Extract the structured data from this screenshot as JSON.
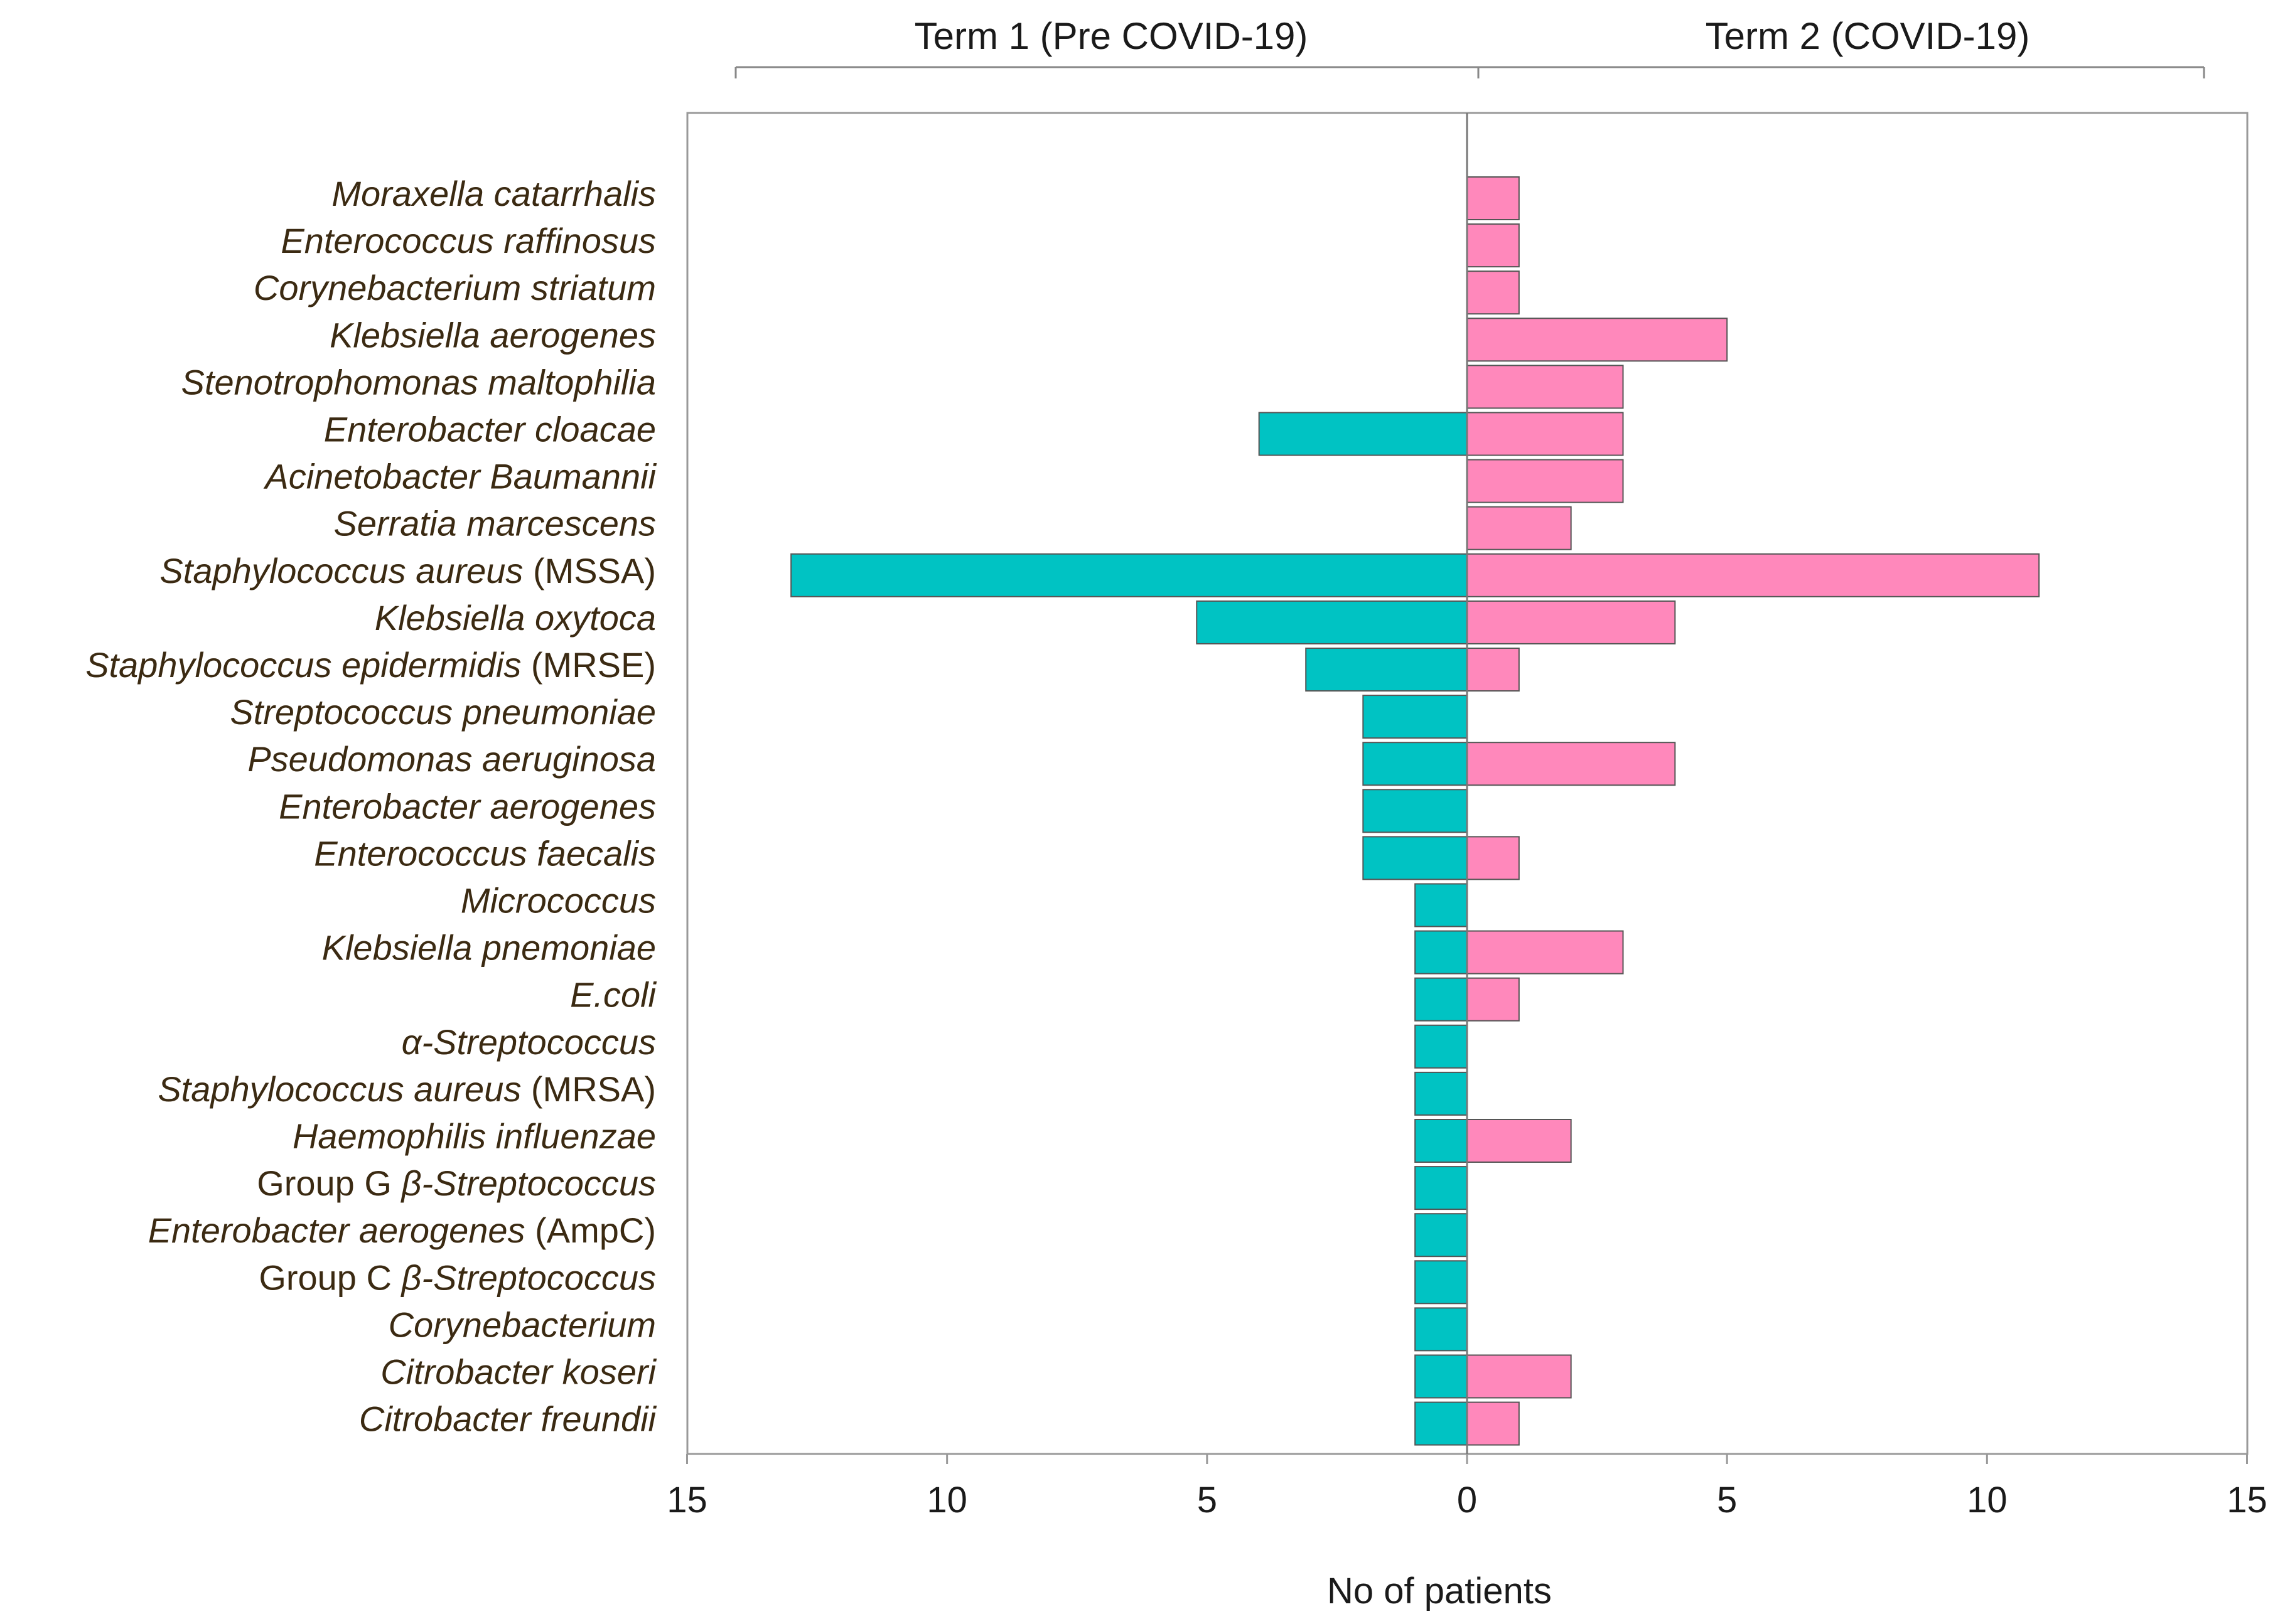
{
  "chart_data": {
    "type": "bar",
    "orientation": "horizontal-diverging",
    "title": "",
    "xlabel": "No of patients",
    "ylabel": "",
    "xlim": [
      -15,
      15
    ],
    "x_ticks": [
      -15,
      -10,
      -5,
      0,
      5,
      10,
      15
    ],
    "tick_labels": [
      "15",
      "10",
      "5",
      "0",
      "5",
      "10",
      "15"
    ],
    "grid": false,
    "colors": {
      "term1": "#00c3c3",
      "term2": "#ff88bb",
      "edge": "#555555"
    },
    "series": [
      {
        "name": "Term 1 (Pre COVID-19)",
        "side": "left",
        "values": [
          0,
          0,
          0,
          0,
          0,
          4,
          0,
          0,
          13,
          5.2,
          3.1,
          2,
          2,
          2,
          2,
          1,
          1,
          1,
          1,
          1,
          1,
          1,
          1,
          1,
          1,
          1,
          1
        ]
      },
      {
        "name": "Term 2 (COVID-19)",
        "side": "right",
        "values": [
          1,
          1,
          1,
          5,
          3,
          3,
          3,
          2,
          11,
          4,
          1,
          0,
          4,
          0,
          1,
          0,
          3,
          1,
          0,
          0,
          2,
          0,
          0,
          0,
          0,
          2,
          1
        ]
      }
    ],
    "categories": [
      {
        "parts": [
          {
            "t": "Moraxella catarrhalis",
            "i": true
          }
        ]
      },
      {
        "parts": [
          {
            "t": "Enterococcus raffinosus",
            "i": true
          }
        ]
      },
      {
        "parts": [
          {
            "t": "Corynebacterium striatum",
            "i": true
          }
        ]
      },
      {
        "parts": [
          {
            "t": "Klebsiella aerogenes",
            "i": true
          }
        ]
      },
      {
        "parts": [
          {
            "t": "Stenotrophomonas maltophilia",
            "i": true
          }
        ]
      },
      {
        "parts": [
          {
            "t": "Enterobacter cloacae",
            "i": true
          }
        ]
      },
      {
        "parts": [
          {
            "t": "Acinetobacter Baumannii",
            "i": true
          }
        ]
      },
      {
        "parts": [
          {
            "t": "Serratia marcescens",
            "i": true
          }
        ]
      },
      {
        "parts": [
          {
            "t": "Staphylococcus aureus",
            "i": true
          },
          {
            "t": " (MSSA)",
            "i": false
          }
        ]
      },
      {
        "parts": [
          {
            "t": "Klebsiella oxytoca",
            "i": true
          }
        ]
      },
      {
        "parts": [
          {
            "t": "Staphylococcus epidermidis",
            "i": true
          },
          {
            "t": " (MRSE)",
            "i": false
          }
        ]
      },
      {
        "parts": [
          {
            "t": "Streptococcus pneumoniae",
            "i": true
          }
        ]
      },
      {
        "parts": [
          {
            "t": "Pseudomonas aeruginosa",
            "i": true
          }
        ]
      },
      {
        "parts": [
          {
            "t": "Enterobacter aerogenes",
            "i": true
          }
        ]
      },
      {
        "parts": [
          {
            "t": "Enterococcus faecalis",
            "i": true
          }
        ]
      },
      {
        "parts": [
          {
            "t": "Micrococcus",
            "i": true
          }
        ]
      },
      {
        "parts": [
          {
            "t": "Klebsiella pnemoniae",
            "i": true
          }
        ]
      },
      {
        "parts": [
          {
            "t": "E.coli",
            "i": true
          }
        ]
      },
      {
        "parts": [
          {
            "t": "α-Streptococcus",
            "i": true
          }
        ]
      },
      {
        "parts": [
          {
            "t": "Staphylococcus aureus",
            "i": true
          },
          {
            "t": " (MRSA)",
            "i": false
          }
        ]
      },
      {
        "parts": [
          {
            "t": "Haemophilis influenzae",
            "i": true
          }
        ]
      },
      {
        "parts": [
          {
            "t": "Group G ",
            "i": false
          },
          {
            "t": "β-Streptococcus",
            "i": true
          }
        ]
      },
      {
        "parts": [
          {
            "t": "Enterobacter aerogenes",
            "i": true
          },
          {
            "t": "  (AmpC)",
            "i": false
          }
        ]
      },
      {
        "parts": [
          {
            "t": "Group C ",
            "i": false
          },
          {
            "t": "β-Streptococcus",
            "i": true
          }
        ]
      },
      {
        "parts": [
          {
            "t": "Corynebacterium",
            "i": true
          }
        ]
      },
      {
        "parts": [
          {
            "t": "Citrobacter koseri",
            "i": true
          }
        ]
      },
      {
        "parts": [
          {
            "t": "Citrobacter freundii",
            "i": true
          }
        ]
      }
    ]
  }
}
